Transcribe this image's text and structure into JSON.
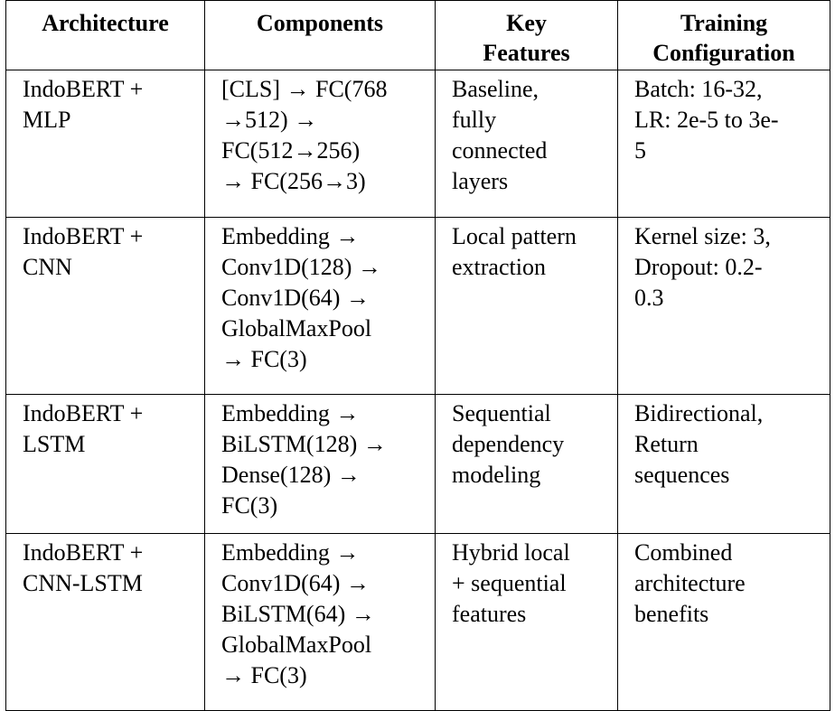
{
  "table": {
    "headers": [
      [
        "Architecture"
      ],
      [
        "Components"
      ],
      [
        "Key",
        "Features"
      ],
      [
        "Training",
        "Configuration"
      ]
    ],
    "rows": [
      {
        "architecture": [
          "IndoBERT +",
          "MLP"
        ],
        "components": [
          "[CLS] → FC(768",
          "→512) →",
          "FC(512→256)",
          "→ FC(256→3)"
        ],
        "features": [
          "Baseline,",
          "fully",
          "connected",
          "layers"
        ],
        "training": [
          "Batch: 16-32,",
          "LR: 2e-5 to 3e-",
          "5"
        ]
      },
      {
        "architecture": [
          "IndoBERT +",
          "CNN"
        ],
        "components": [
          "Embedding →",
          "Conv1D(128) →",
          "Conv1D(64) →",
          "GlobalMaxPool",
          "→ FC(3)"
        ],
        "features": [
          "Local pattern",
          "extraction"
        ],
        "training": [
          "Kernel size: 3,",
          "Dropout: 0.2-",
          "0.3"
        ]
      },
      {
        "architecture": [
          "IndoBERT +",
          "LSTM"
        ],
        "components": [
          "Embedding →",
          "BiLSTM(128) →",
          "Dense(128) →",
          "FC(3)"
        ],
        "features": [
          "Sequential",
          "dependency",
          "modeling"
        ],
        "training": [
          "Bidirectional,",
          "Return",
          "sequences"
        ]
      },
      {
        "architecture": [
          "IndoBERT +",
          "CNN-LSTM"
        ],
        "components": [
          "Embedding →",
          "Conv1D(64) →",
          "BiLSTM(64) →",
          "GlobalMaxPool",
          "→ FC(3)"
        ],
        "features": [
          "Hybrid local",
          "+ sequential",
          "features"
        ],
        "training": [
          "Combined",
          "architecture",
          "benefits"
        ]
      }
    ]
  }
}
